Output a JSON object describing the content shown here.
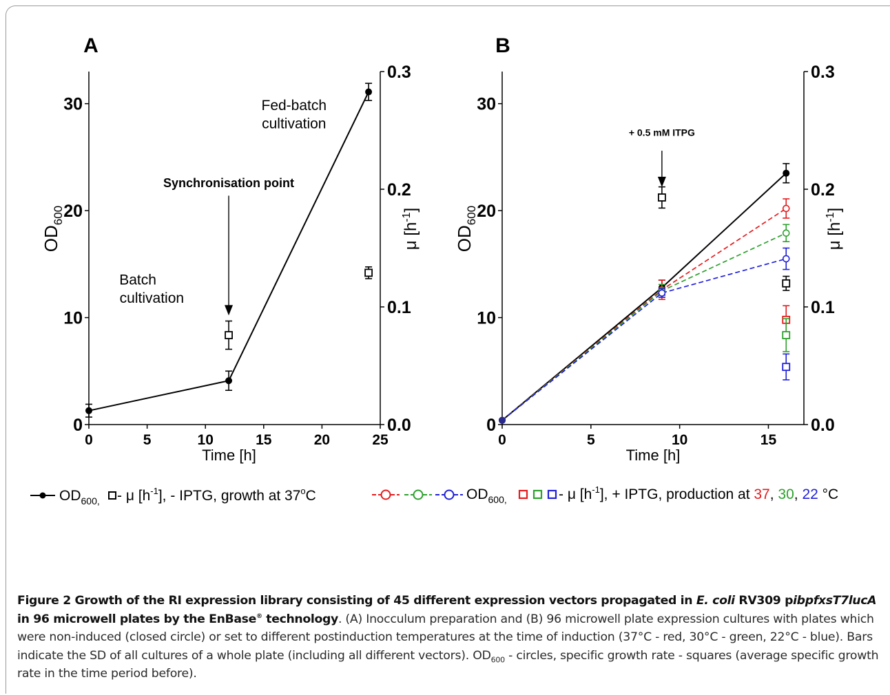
{
  "chart_data": [
    {
      "panel": "A",
      "type": "line",
      "xlabel": "Time [h]",
      "ylabel": "OD",
      "ylabel_sub": "600",
      "y2label": "μ [h",
      "y2label_sup": "-1",
      "y2label_end": "]",
      "xlim": [
        0,
        25
      ],
      "ylim": [
        0,
        33
      ],
      "y2lim": [
        0,
        0.3
      ],
      "x_ticks": [
        0,
        5,
        10,
        15,
        20,
        25
      ],
      "y_ticks": [
        0,
        10,
        20,
        30
      ],
      "y2_ticks": [
        "0.0",
        "0.1",
        "0.2",
        "0.3"
      ],
      "series": [
        {
          "kind": "od",
          "color": "#000000",
          "x": [
            0,
            12,
            24
          ],
          "y": [
            1.3,
            4.1,
            31.1
          ],
          "err": [
            0.6,
            0.9,
            0.8
          ]
        },
        {
          "kind": "mu",
          "color": "#000000",
          "x": [
            12,
            24
          ],
          "y": [
            0.076,
            0.129
          ],
          "err": [
            0.012,
            0.005
          ]
        }
      ],
      "annotations": [
        {
          "text": "Synchronisation point",
          "x": 12,
          "y": 22.2,
          "bold": true
        },
        {
          "text": "Fed-batch",
          "x": 17.6,
          "y": 29.4
        },
        {
          "text": "cultivation",
          "x": 17.6,
          "y": 27.7
        },
        {
          "text": "Batch",
          "x": 4.2,
          "y": 13.1
        },
        {
          "text": "cultivation",
          "x": 5.4,
          "y": 11.4
        }
      ],
      "arrows": [
        {
          "x": 12,
          "from": 21.4,
          "to": 10.2
        }
      ]
    },
    {
      "panel": "B",
      "type": "line",
      "xlabel": "Time [h]",
      "ylabel": "OD",
      "ylabel_sub": "600",
      "y2label": "μ [h",
      "y2label_sup": "-1",
      "y2label_end": "]",
      "xlim": [
        0,
        17
      ],
      "ylim": [
        0,
        33
      ],
      "y2lim": [
        0,
        0.3
      ],
      "x_ticks": [
        0,
        5,
        10,
        15
      ],
      "y_ticks": [
        0,
        10,
        20,
        30
      ],
      "y2_ticks": [
        "0.0",
        "0.1",
        "0.2",
        "0.3"
      ],
      "series": [
        {
          "kind": "od",
          "color": "#000000",
          "dashed": false,
          "x": [
            0,
            9,
            16
          ],
          "y": [
            0.4,
            12.8,
            23.5
          ],
          "err": [
            0,
            0.7,
            0.9
          ]
        },
        {
          "kind": "od",
          "color": "#e41a1c",
          "dashed": true,
          "open": true,
          "x": [
            0,
            9,
            16
          ],
          "y": [
            0.4,
            12.6,
            20.2
          ],
          "err": [
            0,
            0.9,
            0.9
          ]
        },
        {
          "kind": "od",
          "color": "#2ca02c",
          "dashed": true,
          "open": true,
          "x": [
            0,
            9,
            16
          ],
          "y": [
            0.4,
            12.5,
            17.9
          ],
          "err": [
            0,
            0.6,
            0.8
          ]
        },
        {
          "kind": "od",
          "color": "#1f1fd6",
          "dashed": true,
          "open": true,
          "x": [
            0,
            9,
            16
          ],
          "y": [
            0.4,
            12.3,
            15.5
          ],
          "err": [
            0,
            0.4,
            1.0
          ]
        },
        {
          "kind": "mu",
          "color": "#000000",
          "x": [
            9,
            16
          ],
          "y": [
            0.193,
            0.12
          ],
          "err": [
            0.009,
            0.006
          ]
        },
        {
          "kind": "mu",
          "color": "#e41a1c",
          "x": [
            16
          ],
          "y": [
            0.089
          ],
          "err": [
            0.012
          ]
        },
        {
          "kind": "mu",
          "color": "#2ca02c",
          "x": [
            16
          ],
          "y": [
            0.076
          ],
          "err": [
            0.014
          ]
        },
        {
          "kind": "mu",
          "color": "#1f1fd6",
          "x": [
            16
          ],
          "y": [
            0.049
          ],
          "err": [
            0.011
          ]
        }
      ],
      "annotations": [
        {
          "text": "+ 0.5 mM ITPG",
          "x": 9,
          "y": 27.0,
          "bold": true
        }
      ],
      "arrows": [
        {
          "x": 9,
          "from": 25.6,
          "to": 22.2
        }
      ]
    }
  ],
  "panel_labels": [
    "A",
    "B"
  ],
  "legend": {
    "left": {
      "od": "OD",
      "od_sub": "600,",
      "mu_prefix": " - μ [h",
      "mu_sup": "-1",
      "rest": "], - IPTG, growth at 37",
      "deg": "o",
      "unit": "C"
    },
    "right": {
      "od": "OD",
      "od_sub": "600,",
      "mu_prefix": "- μ [h",
      "mu_sup": "-1",
      "rest": "], + IPTG, production at ",
      "t37": "37",
      "c1": ", ",
      "t30": "30",
      "c2": ", ",
      "t22": "22",
      "unit": " °C"
    }
  },
  "colors": {
    "red": "#e41a1c",
    "green": "#2ca02c",
    "blue": "#1f1fd6",
    "black": "#000000"
  },
  "caption": {
    "bold1": "Figure 2 Growth of the RI expression library consisting of 45 different expression vectors propagated in ",
    "bold_italic1": "E. coli",
    "bold2": " RV309 p",
    "bold_italic2": "ibpfxsT7lucA",
    "bold3": " in 96 microwell plates by the EnBase",
    "bold_sup": "®",
    "bold4": " technology",
    "text1": ". (A) Inocculum preparation and (B) 96 microwell plate expression cultures with plates which were non-induced (closed circle) or set to different postinduction temperatures at the time of induction (37°C - red, 30°C - green, 22°C - blue). Bars indicate the SD of all cultures of a whole plate (including all different vectors). OD",
    "sub": "600",
    "text2": " - circles, specific growth rate - squares (average specific growth rate in the time period before)."
  }
}
